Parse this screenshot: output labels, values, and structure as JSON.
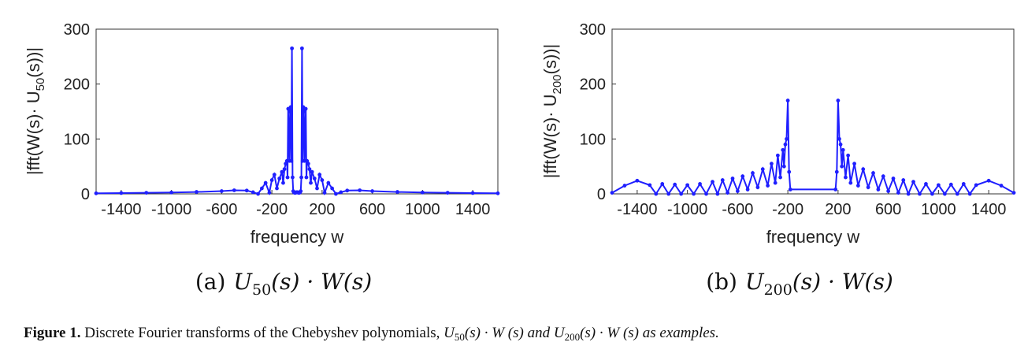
{
  "chart_data": [
    {
      "type": "line",
      "panel": "(a)",
      "xlabel": "frequency w",
      "ylabel_parts": [
        "|fft(W(s)· U",
        "50",
        "(s))|"
      ],
      "xlim": [
        -1600,
        1600
      ],
      "ylim": [
        0,
        300
      ],
      "xticks": [
        -1400,
        -1000,
        -600,
        -200,
        200,
        600,
        1000,
        1400
      ],
      "yticks": [
        0,
        100,
        200,
        300
      ],
      "series_color": "#1f1fff",
      "series": [
        {
          "x": [
            -1600,
            -1400,
            -1200,
            -1000,
            -800,
            -600,
            -500,
            -400,
            -350,
            -310,
            -280,
            -250,
            -220,
            -200,
            -180,
            -160,
            -140,
            -120,
            -110,
            -100,
            -90,
            -80,
            -75,
            -70,
            -60,
            -55,
            -50,
            -45,
            -40,
            -35,
            -30,
            -25,
            -20,
            -15,
            -10,
            -5,
            0,
            5,
            10,
            15,
            20,
            25,
            30,
            35,
            40,
            45,
            50,
            55,
            60,
            70,
            75,
            80,
            90,
            100,
            110,
            120,
            140,
            160,
            180,
            200,
            220,
            250,
            280,
            310,
            350,
            400,
            500,
            600,
            800,
            1000,
            1200,
            1400,
            1600
          ],
          "y": [
            1,
            1.5,
            2,
            2.5,
            3.5,
            5,
            6.5,
            6,
            3,
            0,
            10,
            20,
            2,
            25,
            35,
            10,
            28,
            40,
            20,
            45,
            55,
            60,
            30,
            155,
            60,
            150,
            158,
            60,
            265,
            30,
            5,
            3,
            2,
            2,
            2,
            3,
            3,
            3,
            2,
            2,
            2,
            3,
            5,
            30,
            265,
            60,
            158,
            150,
            60,
            155,
            30,
            60,
            55,
            45,
            20,
            40,
            28,
            10,
            35,
            25,
            2,
            20,
            10,
            0,
            3,
            6,
            6.5,
            5,
            3.5,
            2.5,
            2,
            1.5,
            1
          ]
        }
      ]
    },
    {
      "type": "line",
      "panel": "(b)",
      "xlabel": "frequency w",
      "ylabel_parts": [
        "|fft(W(s)· U",
        "200",
        "(s))|"
      ],
      "xlim": [
        -1600,
        1600
      ],
      "ylim": [
        0,
        300
      ],
      "xticks": [
        -1400,
        -1000,
        -600,
        -200,
        200,
        600,
        1000,
        1400
      ],
      "yticks": [
        0,
        100,
        200,
        300
      ],
      "series_color": "#1f1fff",
      "series": [
        {
          "x": [
            -1600,
            -1500,
            -1400,
            -1300,
            -1250,
            -1200,
            -1150,
            -1100,
            -1050,
            -1000,
            -950,
            -900,
            -850,
            -800,
            -760,
            -720,
            -680,
            -640,
            -600,
            -560,
            -520,
            -480,
            -440,
            -400,
            -360,
            -330,
            -300,
            -280,
            -260,
            -240,
            -230,
            -220,
            -210,
            -200,
            -190,
            -180,
            180,
            190,
            200,
            210,
            220,
            230,
            240,
            260,
            280,
            300,
            330,
            360,
            400,
            440,
            480,
            520,
            560,
            600,
            640,
            680,
            720,
            760,
            800,
            850,
            900,
            950,
            1000,
            1050,
            1100,
            1150,
            1200,
            1250,
            1300,
            1400,
            1500,
            1600
          ],
          "y": [
            2,
            15,
            24,
            16,
            0,
            18,
            0,
            17,
            0,
            16,
            0,
            18,
            0,
            22,
            0,
            25,
            2,
            28,
            5,
            32,
            8,
            38,
            12,
            45,
            15,
            55,
            20,
            70,
            30,
            80,
            50,
            90,
            100,
            170,
            40,
            8,
            8,
            40,
            170,
            100,
            90,
            50,
            80,
            30,
            70,
            20,
            55,
            15,
            45,
            12,
            38,
            8,
            32,
            5,
            28,
            2,
            25,
            0,
            22,
            0,
            18,
            0,
            16,
            0,
            17,
            0,
            18,
            0,
            16,
            24,
            15,
            2
          ]
        }
      ]
    }
  ],
  "subcaptions": [
    {
      "label": "(a)",
      "expr_parts": [
        "U",
        "50",
        "(s) · W(s)"
      ]
    },
    {
      "label": "(b)",
      "expr_parts": [
        "U",
        "200",
        "(s) · W(s)"
      ]
    }
  ],
  "caption": {
    "prefix": "Figure 1.",
    "text_parts": [
      "Discrete Fourier transforms of the Chebyshev polynomials,",
      "U",
      "50",
      "(s) · W (s) and",
      "U",
      "200",
      "(s) · W (s) as examples."
    ]
  }
}
